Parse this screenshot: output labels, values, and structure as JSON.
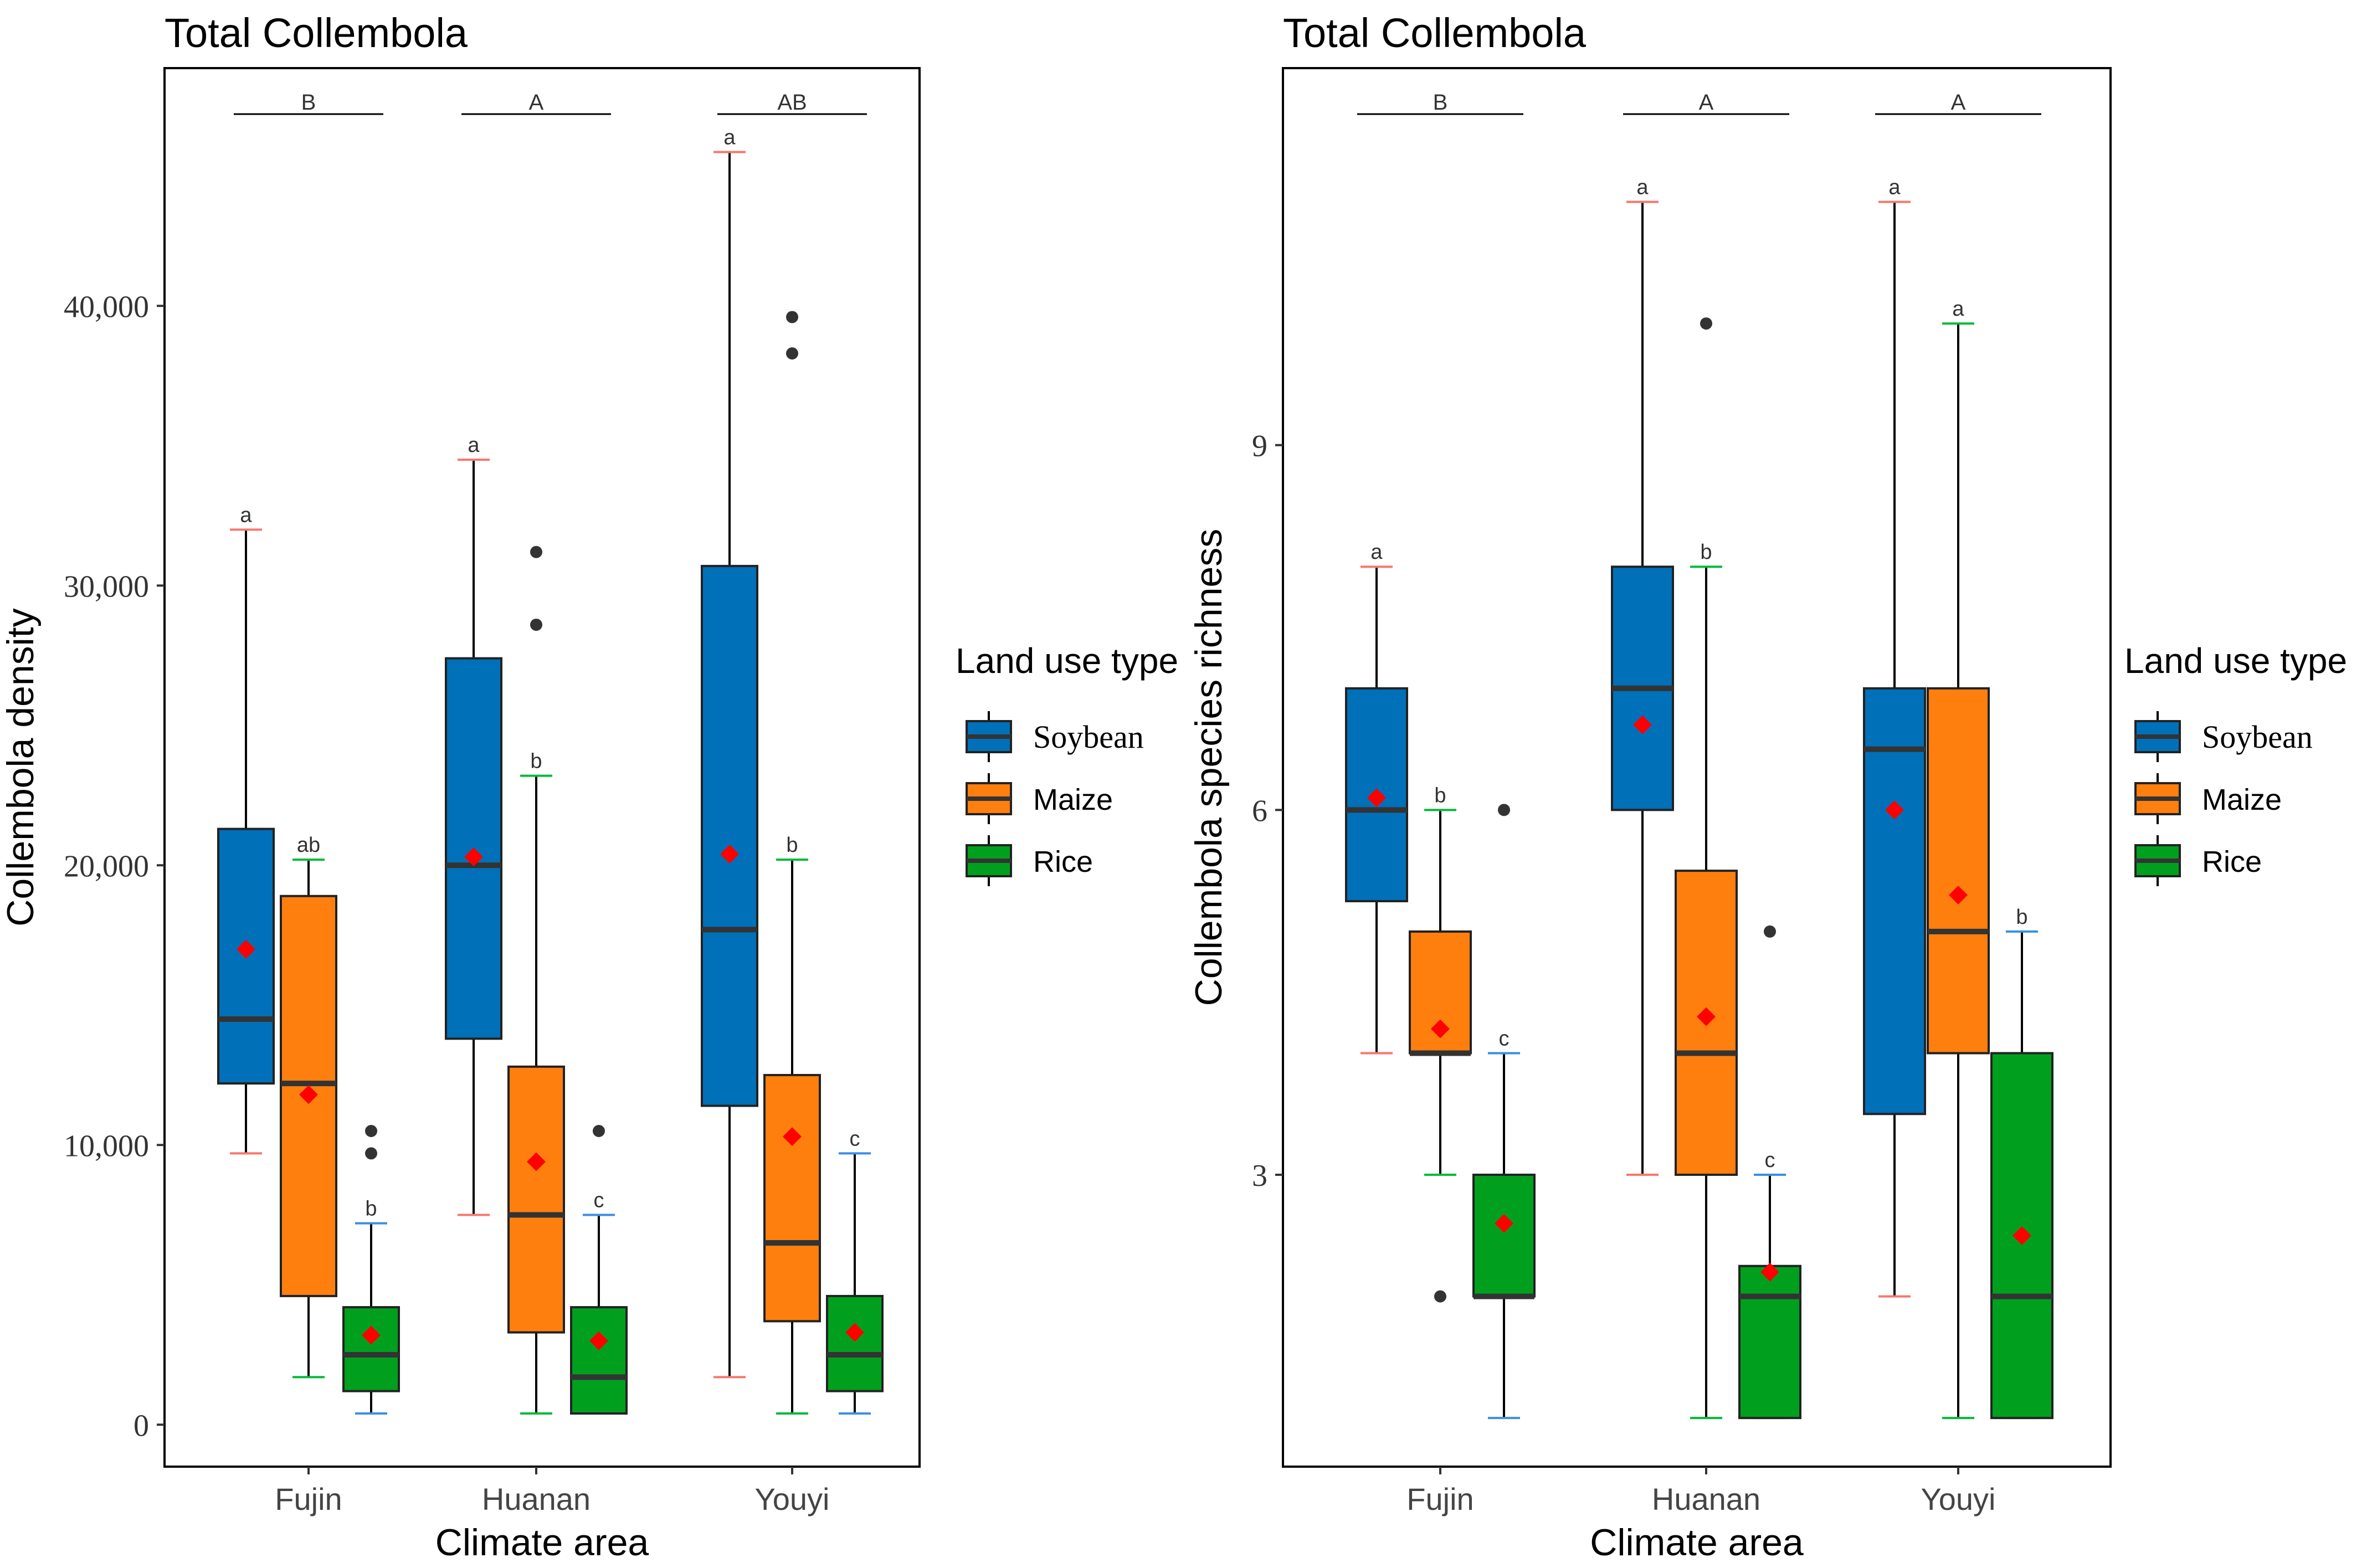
{
  "colors": {
    "soybean": "#0070B8",
    "maize": "#FF7F0E",
    "rice": "#00A01E",
    "soybean_whisker_cap": "#F8766D",
    "maize_whisker_cap": "#00BA38",
    "rice_whisker_cap": "#3A8EE6",
    "mean_marker": "#FF0000",
    "outlier": "#333333",
    "median": "#333333"
  },
  "legend": {
    "title": "Land use type",
    "items": [
      {
        "key": "soybean",
        "label": "Soybean"
      },
      {
        "key": "maize",
        "label": "Maize"
      },
      {
        "key": "rice",
        "label": "Rice"
      }
    ]
  },
  "chart_data": [
    {
      "type": "boxplot",
      "title": "Total Collembola",
      "xlabel": "Climate area",
      "ylabel": "Collembola density",
      "categories": [
        "Fujin",
        "Huanan",
        "Youyi"
      ],
      "ylim": [
        -1500,
        48500
      ],
      "yticks": [
        0,
        10000,
        20000,
        30000,
        40000
      ],
      "ytick_labels": [
        "0",
        "10,000",
        "20,000",
        "30,000",
        "40,000"
      ],
      "group_letters": [
        "B",
        "A",
        "AB"
      ],
      "series": [
        {
          "name": "Soybean",
          "boxes": [
            {
              "whisker_low": 9700,
              "q1": 12200,
              "median": 14500,
              "q3": 21300,
              "whisker_high": 32000,
              "mean": 17000,
              "outliers": [],
              "letter": "a"
            },
            {
              "whisker_low": 7500,
              "q1": 13800,
              "median": 20000,
              "q3": 27400,
              "whisker_high": 34500,
              "mean": 20300,
              "outliers": [],
              "letter": "a"
            },
            {
              "whisker_low": 1700,
              "q1": 11400,
              "median": 17700,
              "q3": 30700,
              "whisker_high": 45500,
              "mean": 20400,
              "outliers": [],
              "letter": "a"
            }
          ]
        },
        {
          "name": "Maize",
          "boxes": [
            {
              "whisker_low": 1700,
              "q1": 4600,
              "median": 12200,
              "q3": 18900,
              "whisker_high": 20200,
              "mean": 11800,
              "outliers": [],
              "letter": "ab"
            },
            {
              "whisker_low": 400,
              "q1": 3300,
              "median": 7500,
              "q3": 12800,
              "whisker_high": 23200,
              "mean": 9400,
              "outliers": [
                28600,
                31200
              ],
              "letter": "b"
            },
            {
              "whisker_low": 400,
              "q1": 3700,
              "median": 6500,
              "q3": 12500,
              "whisker_high": 20200,
              "mean": 10300,
              "outliers": [
                38300,
                39600
              ],
              "letter": "b"
            }
          ]
        },
        {
          "name": "Rice",
          "boxes": [
            {
              "whisker_low": 400,
              "q1": 1200,
              "median": 2500,
              "q3": 4200,
              "whisker_high": 7200,
              "mean": 3200,
              "outliers": [
                9700,
                10500
              ],
              "letter": "b"
            },
            {
              "whisker_low": 400,
              "q1": 400,
              "median": 1700,
              "q3": 4200,
              "whisker_high": 7500,
              "mean": 3000,
              "outliers": [
                10500
              ],
              "letter": "c"
            },
            {
              "whisker_low": 400,
              "q1": 1200,
              "median": 2500,
              "q3": 4600,
              "whisker_high": 9700,
              "mean": 3300,
              "outliers": [],
              "letter": "c"
            }
          ]
        }
      ]
    },
    {
      "type": "boxplot",
      "title": "Total Collembola",
      "xlabel": "Climate area",
      "ylabel": "Collembola species richness",
      "categories": [
        "Fujin",
        "Huanan",
        "Youyi"
      ],
      "ylim": [
        0.6,
        12.1
      ],
      "yticks": [
        3,
        6,
        9
      ],
      "ytick_labels": [
        "3",
        "6",
        "9"
      ],
      "group_letters": [
        "B",
        "A",
        "A"
      ],
      "series": [
        {
          "name": "Soybean",
          "boxes": [
            {
              "whisker_low": 4,
              "q1": 5.25,
              "median": 6,
              "q3": 7,
              "whisker_high": 8,
              "mean": 6.1,
              "outliers": [],
              "letter": "a"
            },
            {
              "whisker_low": 3,
              "q1": 6,
              "median": 7,
              "q3": 8,
              "whisker_high": 11,
              "mean": 6.7,
              "outliers": [],
              "letter": "a"
            },
            {
              "whisker_low": 2,
              "q1": 3.5,
              "median": 6.5,
              "q3": 7,
              "whisker_high": 11,
              "mean": 6.0,
              "outliers": [],
              "letter": "a"
            }
          ]
        },
        {
          "name": "Maize",
          "boxes": [
            {
              "whisker_low": 3,
              "q1": 4,
              "median": 4,
              "q3": 5,
              "whisker_high": 6,
              "mean": 4.2,
              "outliers": [
                2
              ],
              "letter": "b"
            },
            {
              "whisker_low": 1,
              "q1": 3,
              "median": 4,
              "q3": 5.5,
              "whisker_high": 8,
              "mean": 4.3,
              "outliers": [
                10
              ],
              "letter": "b"
            },
            {
              "whisker_low": 1,
              "q1": 4,
              "median": 5,
              "q3": 7,
              "whisker_high": 10,
              "mean": 5.3,
              "outliers": [],
              "letter": "a"
            }
          ]
        },
        {
          "name": "Rice",
          "boxes": [
            {
              "whisker_low": 1,
              "q1": 2,
              "median": 2,
              "q3": 3,
              "whisker_high": 4,
              "mean": 2.6,
              "outliers": [
                6
              ],
              "letter": "c"
            },
            {
              "whisker_low": 1,
              "q1": 1,
              "median": 2,
              "q3": 2.25,
              "whisker_high": 3,
              "mean": 2.2,
              "outliers": [
                5
              ],
              "letter": "c"
            },
            {
              "whisker_low": 1,
              "q1": 1,
              "median": 2,
              "q3": 4,
              "whisker_high": 5,
              "mean": 2.5,
              "outliers": [],
              "letter": "b"
            }
          ]
        }
      ]
    }
  ]
}
